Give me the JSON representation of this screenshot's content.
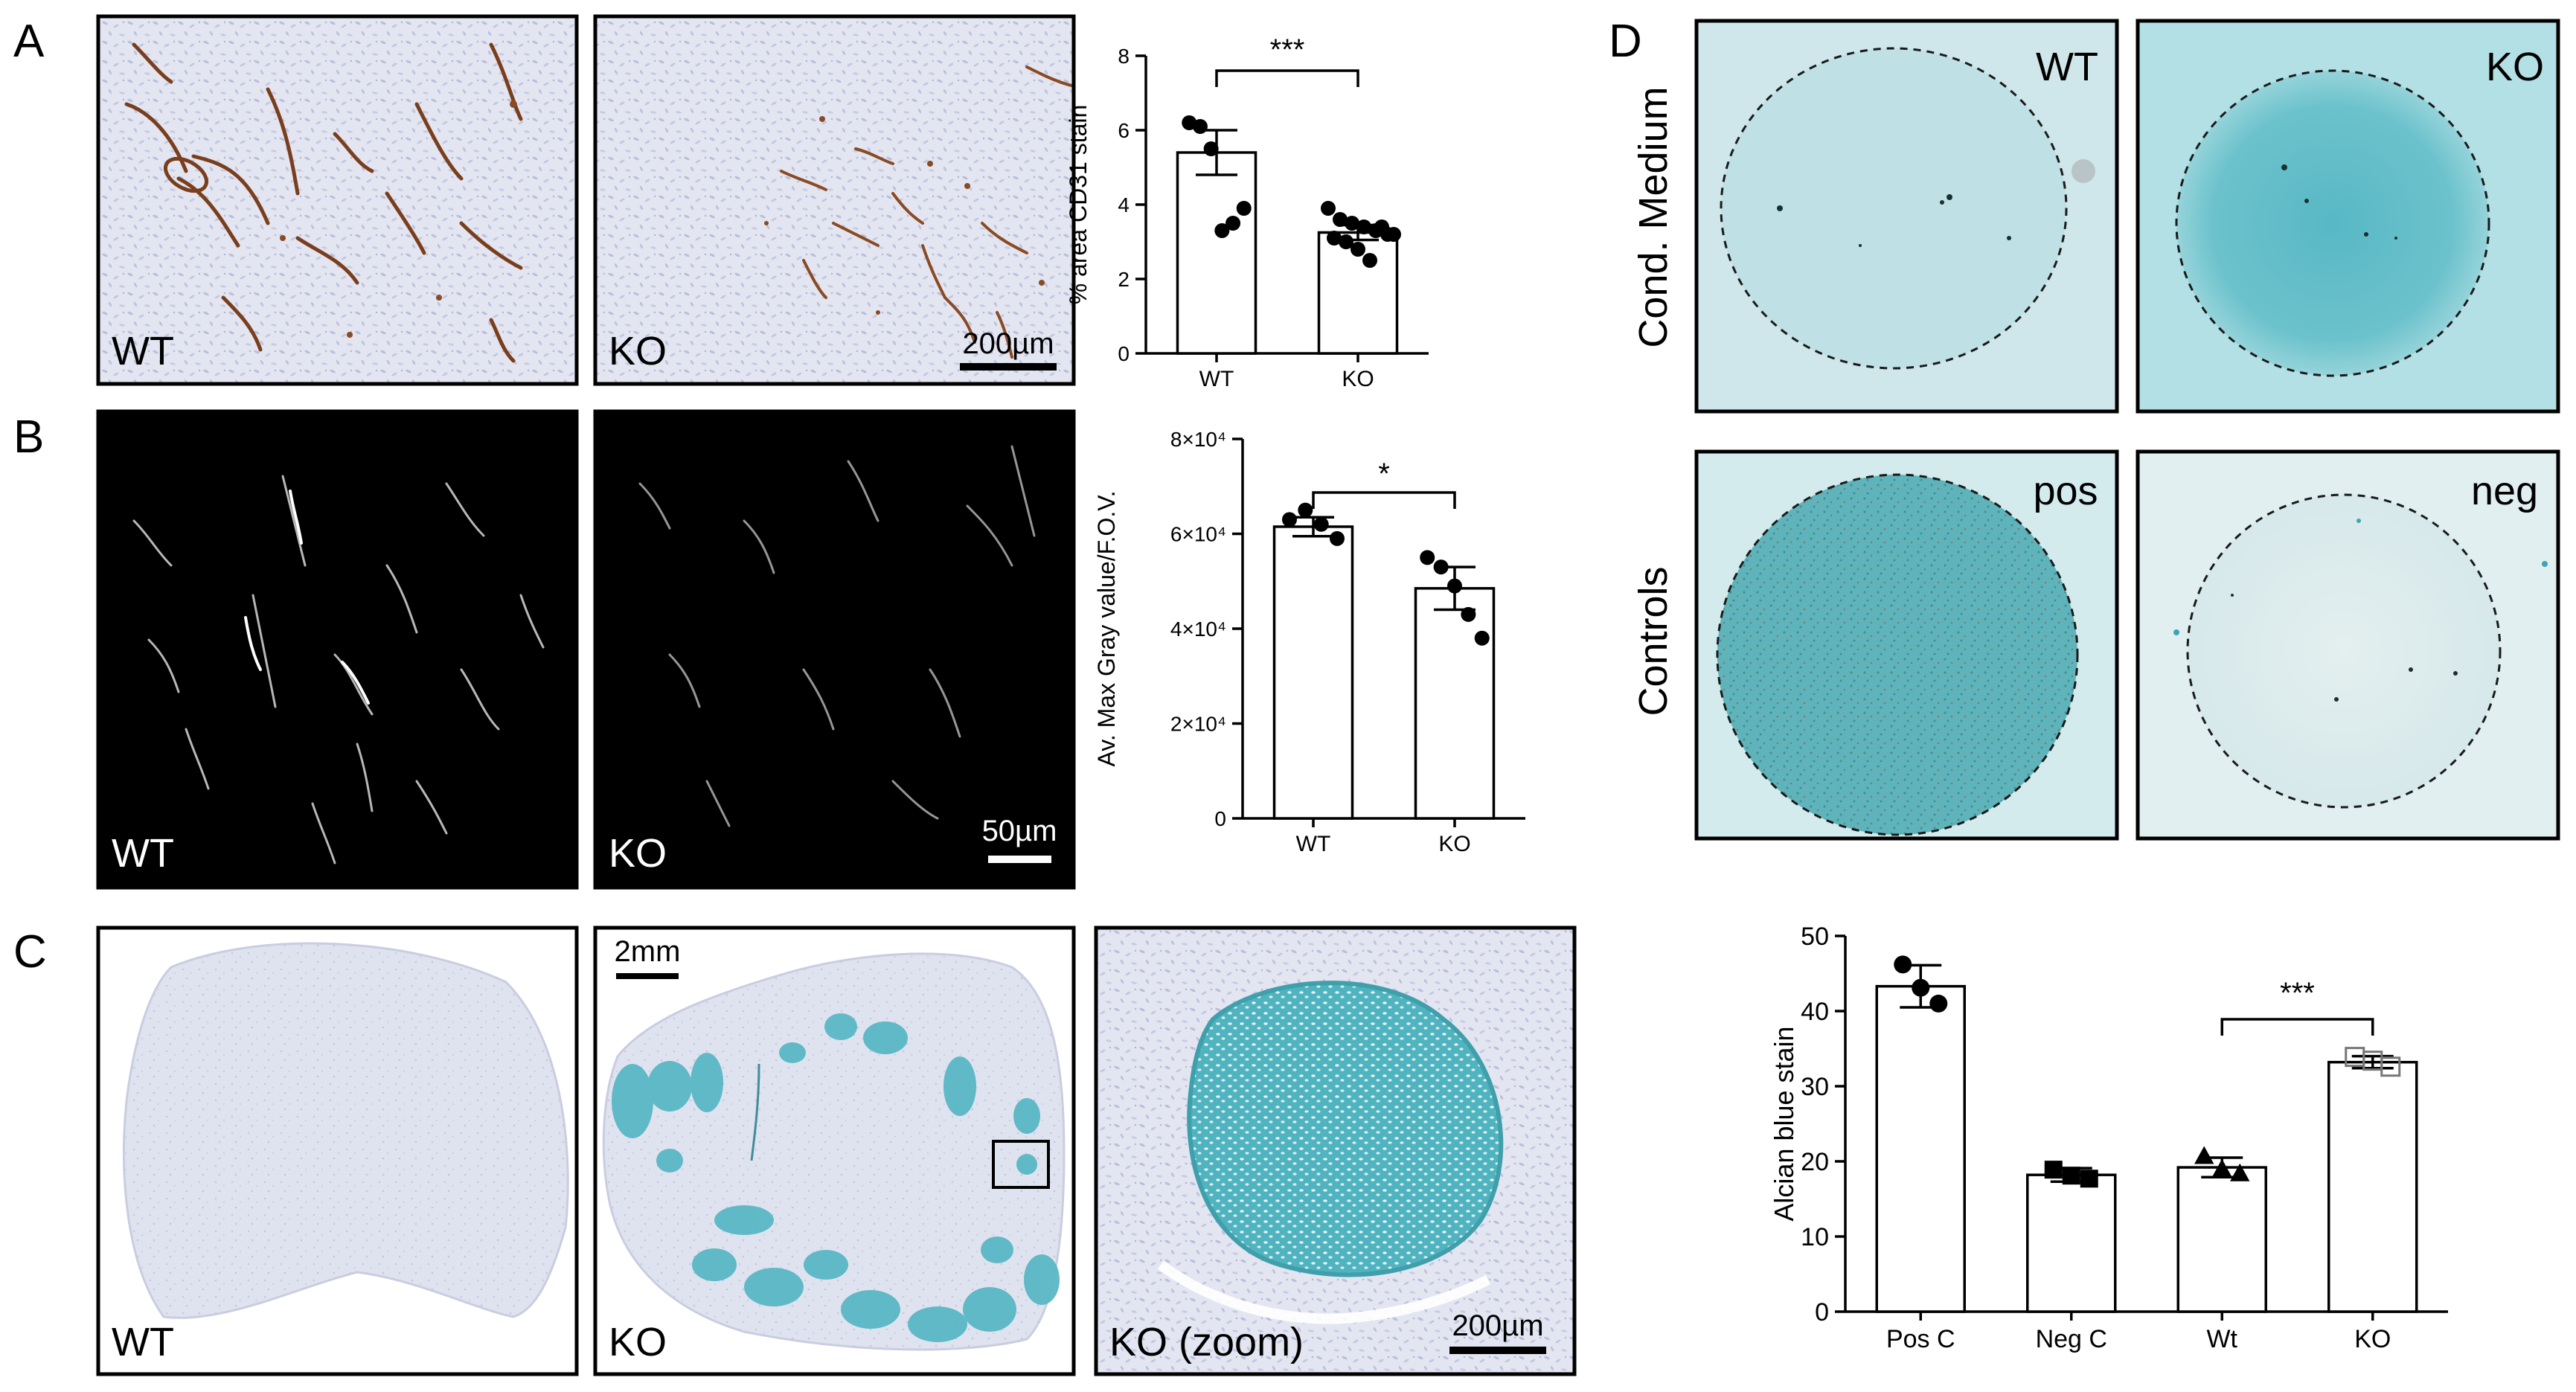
{
  "panels": {
    "A": {
      "letter": "A",
      "images": [
        {
          "label": "WT"
        },
        {
          "label": "KO",
          "scalebar": "200µm"
        }
      ]
    },
    "B": {
      "letter": "B",
      "images": [
        {
          "label": "WT"
        },
        {
          "label": "KO",
          "scalebar": "50µm"
        }
      ]
    },
    "C": {
      "letter": "C",
      "images": [
        {
          "label": "WT"
        },
        {
          "label": "KO",
          "scalebar": "2mm"
        },
        {
          "label": "KO (zoom)",
          "scalebar": "200µm"
        }
      ]
    },
    "D": {
      "letter": "D",
      "row_labels": [
        "Cond. Medium",
        "Controls"
      ],
      "images": [
        {
          "label": "WT"
        },
        {
          "label": "KO"
        },
        {
          "label": "pos"
        },
        {
          "label": "neg"
        }
      ]
    }
  },
  "chart_data": [
    {
      "panel": "A",
      "type": "bar",
      "categories": [
        "WT",
        "KO"
      ],
      "values": [
        5.4,
        3.25
      ],
      "errors": [
        0.6,
        0.2
      ],
      "points": [
        [
          6.2,
          6.1,
          5.5,
          3.3,
          3.5,
          3.9
        ],
        [
          3.9,
          3.6,
          3.5,
          3.4,
          3.3,
          3.2,
          3.1,
          3.0,
          2.8,
          2.5,
          3.4,
          3.2
        ]
      ],
      "ylabel": "% area CD31 stain",
      "yticks": [
        "0",
        "2",
        "4",
        "6",
        "8"
      ],
      "ylim": [
        0,
        8
      ],
      "significance": "***"
    },
    {
      "panel": "B",
      "type": "bar",
      "categories": [
        "WT",
        "KO"
      ],
      "values": [
        61500,
        48500
      ],
      "errors": [
        2000,
        4500
      ],
      "points": [
        [
          63000,
          65000,
          62000,
          59000
        ],
        [
          55000,
          53000,
          49000,
          43000,
          38000
        ]
      ],
      "ylabel": "Av. Max Gray value/F.O.V.",
      "yticks": [
        "0",
        "2×10⁴",
        "4×10⁴",
        "6×10⁴",
        "8×10⁴"
      ],
      "ylim": [
        0,
        80000
      ],
      "significance": "*"
    },
    {
      "panel": "D",
      "type": "bar",
      "categories": [
        "Pos C",
        "Neg C",
        "Wt",
        "KO"
      ],
      "values": [
        43.3,
        18.2,
        19.2,
        33.2
      ],
      "errors": [
        2.8,
        0.9,
        1.3,
        0.8
      ],
      "points": [
        [
          46.2,
          43.1,
          41.0
        ],
        [
          18.9,
          18.1,
          17.7
        ],
        [
          20.6,
          18.9,
          18.3
        ],
        [
          33.9,
          33.4,
          32.6
        ]
      ],
      "ylabel": "Alcian blue stain",
      "yticks": [
        "0",
        "10",
        "20",
        "30",
        "40",
        "50"
      ],
      "ylim": [
        0,
        50
      ],
      "significance": "***",
      "significance_between": [
        "Wt",
        "KO"
      ]
    }
  ]
}
